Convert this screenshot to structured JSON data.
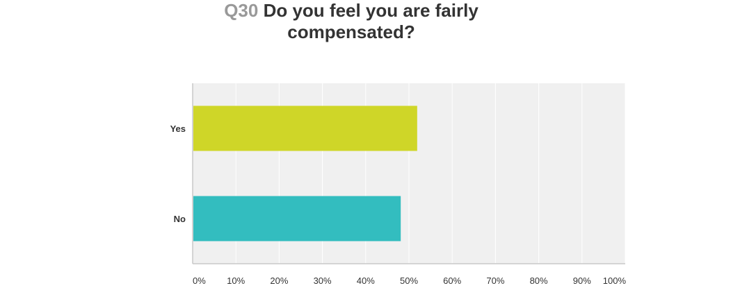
{
  "question": {
    "number": "Q30",
    "text": "Do you feel you are fairly compensated?"
  },
  "colors": {
    "plot_background": "#f0f0f0",
    "gridline": "#ffffff",
    "axis": "#c8c8c8",
    "series": [
      "#cfd628",
      "#33bdbf"
    ]
  },
  "chart_data": {
    "type": "bar",
    "orientation": "horizontal",
    "categories": [
      "Yes",
      "No"
    ],
    "values": [
      51.9,
      48.1
    ],
    "value_unit": "percent",
    "xlim": [
      0,
      100
    ],
    "x_ticks": [
      "0%",
      "10%",
      "20%",
      "30%",
      "40%",
      "50%",
      "60%",
      "70%",
      "80%",
      "90%",
      "100%"
    ],
    "title": "Q30 Do you feel you are fairly compensated?",
    "xlabel": "",
    "ylabel": "",
    "grid": true,
    "legend": "none"
  }
}
